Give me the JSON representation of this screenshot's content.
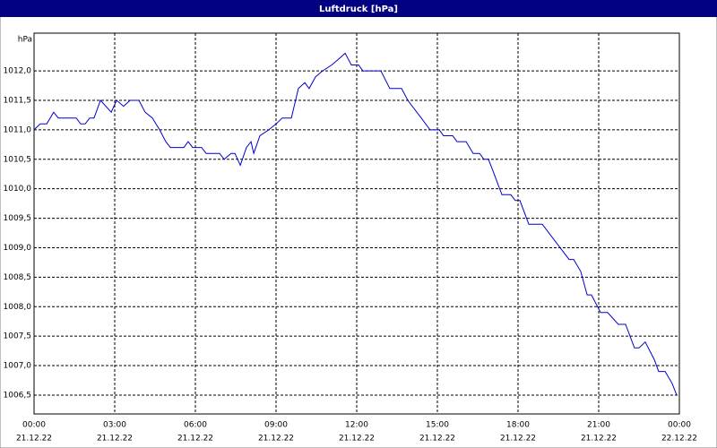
{
  "chart_data": {
    "type": "line",
    "title": "Luftdruck [hPa]",
    "y_unit": "hPa",
    "xlim": [
      0,
      24
    ],
    "ylim": [
      1006.18,
      1012.64
    ],
    "grid": true,
    "xticks": [
      {
        "value": 0,
        "label": "00:00",
        "date": "21.12.22"
      },
      {
        "value": 3,
        "label": "03:00",
        "date": "21.12.22"
      },
      {
        "value": 6,
        "label": "06:00",
        "date": "21.12.22"
      },
      {
        "value": 9,
        "label": "09:00",
        "date": "21.12.22"
      },
      {
        "value": 12,
        "label": "12:00",
        "date": "21.12.22"
      },
      {
        "value": 15,
        "label": "15:00",
        "date": "21.12.22"
      },
      {
        "value": 18,
        "label": "18:00",
        "date": "21.12.22"
      },
      {
        "value": 21,
        "label": "21:00",
        "date": "21.12.22"
      },
      {
        "value": 24,
        "label": "00:00",
        "date": "22.12.22"
      }
    ],
    "yticks": [
      {
        "value": 1006.5,
        "label": "1006,5"
      },
      {
        "value": 1007,
        "label": "1007,0"
      },
      {
        "value": 1007.5,
        "label": "1007,5"
      },
      {
        "value": 1008,
        "label": "1008,0"
      },
      {
        "value": 1008.5,
        "label": "1008,5"
      },
      {
        "value": 1009,
        "label": "1009,0"
      },
      {
        "value": 1009.5,
        "label": "1009,5"
      },
      {
        "value": 1010,
        "label": "1010,0"
      },
      {
        "value": 1010.5,
        "label": "1010,5"
      },
      {
        "value": 1011,
        "label": "1011,0"
      },
      {
        "value": 1011.5,
        "label": "1011,5"
      },
      {
        "value": 1012,
        "label": "1012,0"
      }
    ],
    "color": "#0000cc",
    "x": [
      0,
      0.23,
      0.47,
      0.73,
      0.9,
      1.57,
      1.73,
      1.9,
      2.07,
      2.23,
      2.47,
      2.67,
      2.87,
      3.07,
      3.33,
      3.57,
      3.9,
      4.13,
      4.4,
      4.67,
      4.9,
      5.07,
      5.57,
      5.73,
      5.9,
      6.23,
      6.4,
      6.9,
      7.07,
      7.33,
      7.47,
      7.67,
      7.9,
      8.07,
      8.17,
      8.4,
      8.73,
      9,
      9.23,
      9.57,
      9.83,
      10.07,
      10.23,
      10.47,
      10.73,
      11.07,
      11.33,
      11.57,
      11.8,
      12.07,
      12.23,
      12.9,
      13.23,
      13.67,
      13.9,
      14.4,
      14.73,
      15.07,
      15.23,
      15.57,
      15.73,
      16.07,
      16.33,
      16.57,
      16.73,
      16.9,
      17.07,
      17.4,
      17.73,
      17.9,
      18.07,
      18.4,
      18.9,
      19.4,
      19.9,
      20.07,
      20.33,
      20.57,
      20.73,
      21.07,
      21.33,
      21.73,
      22,
      22.33,
      22.5,
      22.73,
      23.07,
      23.23,
      23.47,
      23.73,
      23.9
    ],
    "values": [
      1011.0,
      1011.1,
      1011.1,
      1011.3,
      1011.2,
      1011.2,
      1011.1,
      1011.1,
      1011.2,
      1011.2,
      1011.5,
      1011.4,
      1011.3,
      1011.5,
      1011.4,
      1011.5,
      1011.5,
      1011.3,
      1011.2,
      1011.0,
      1010.8,
      1010.7,
      1010.7,
      1010.8,
      1010.7,
      1010.7,
      1010.6,
      1010.6,
      1010.5,
      1010.6,
      1010.6,
      1010.4,
      1010.7,
      1010.8,
      1010.6,
      1010.9,
      1011.0,
      1011.1,
      1011.2,
      1011.2,
      1011.7,
      1011.8,
      1011.7,
      1011.9,
      1012.0,
      1012.1,
      1012.2,
      1012.3,
      1012.1,
      1012.1,
      1012.0,
      1012.0,
      1011.7,
      1011.7,
      1011.5,
      1011.2,
      1011.0,
      1011.0,
      1010.9,
      1010.9,
      1010.8,
      1010.8,
      1010.6,
      1010.6,
      1010.5,
      1010.5,
      1010.3,
      1009.9,
      1009.9,
      1009.8,
      1009.8,
      1009.4,
      1009.4,
      1009.1,
      1008.8,
      1008.8,
      1008.6,
      1008.2,
      1008.2,
      1007.9,
      1007.9,
      1007.7,
      1007.7,
      1007.3,
      1007.3,
      1007.4,
      1007.1,
      1006.9,
      1006.9,
      1006.7,
      1006.5
    ]
  }
}
